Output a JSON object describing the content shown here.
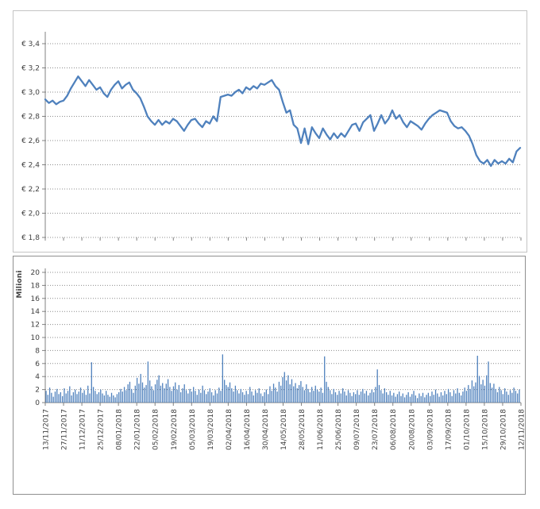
{
  "style": {
    "background": "#ffffff",
    "grid_color": "#8c8c8c",
    "axis_color": "#808080",
    "text_color": "#404040",
    "panel_border_top": "#c4c4c4",
    "panel_border_bottom": "#8f8f8f"
  },
  "chart_data": [
    {
      "type": "line",
      "title": "",
      "ylabel": "",
      "currency_prefix": "€",
      "ylim": [
        1.8,
        3.4
      ],
      "ytick_step": 0.2,
      "ytick_labels": [
        "€ 3,4",
        "€ 3,2",
        "€ 3,0",
        "€ 2,8",
        "€ 2,6",
        "€ 2,4",
        "€ 2,2",
        "€ 2,0",
        "€ 1,8"
      ],
      "x_start": "13/11/2017",
      "x_end": "12/11/2018",
      "grid": "dotted",
      "legend": "none",
      "line_color": "#4f81bd",
      "values": [
        2.94,
        2.91,
        2.93,
        2.9,
        2.92,
        2.93,
        2.97,
        3.03,
        3.08,
        3.13,
        3.09,
        3.05,
        3.1,
        3.06,
        3.02,
        3.04,
        2.99,
        2.96,
        3.02,
        3.06,
        3.09,
        3.03,
        3.06,
        3.08,
        3.02,
        2.99,
        2.95,
        2.88,
        2.8,
        2.76,
        2.73,
        2.77,
        2.73,
        2.76,
        2.74,
        2.78,
        2.76,
        2.72,
        2.68,
        2.73,
        2.77,
        2.78,
        2.74,
        2.71,
        2.76,
        2.74,
        2.8,
        2.76,
        2.96,
        2.97,
        2.98,
        2.97,
        3.0,
        3.02,
        2.99,
        3.04,
        3.02,
        3.05,
        3.03,
        3.07,
        3.06,
        3.08,
        3.1,
        3.05,
        3.02,
        2.92,
        2.83,
        2.85,
        2.73,
        2.7,
        2.58,
        2.7,
        2.57,
        2.71,
        2.66,
        2.62,
        2.7,
        2.65,
        2.61,
        2.66,
        2.62,
        2.66,
        2.63,
        2.68,
        2.73,
        2.74,
        2.68,
        2.75,
        2.78,
        2.81,
        2.68,
        2.74,
        2.81,
        2.74,
        2.78,
        2.85,
        2.78,
        2.81,
        2.75,
        2.71,
        2.76,
        2.74,
        2.72,
        2.69,
        2.74,
        2.78,
        2.81,
        2.83,
        2.85,
        2.84,
        2.83,
        2.76,
        2.72,
        2.7,
        2.71,
        2.68,
        2.64,
        2.57,
        2.48,
        2.43,
        2.41,
        2.44,
        2.39,
        2.44,
        2.41,
        2.43,
        2.41,
        2.45,
        2.42,
        2.51,
        2.54
      ]
    },
    {
      "type": "bar",
      "title": "",
      "ylabel": "Milioni",
      "ylim": [
        0,
        20
      ],
      "ytick_step": 2,
      "ytick_labels": [
        "20",
        "18",
        "16",
        "14",
        "12",
        "10",
        "8",
        "6",
        "4",
        "2",
        "0"
      ],
      "grid": "dotted",
      "legend": "none",
      "bar_color": "#4f81bd",
      "categories": [
        "13/11/2017",
        "27/11/2017",
        "11/12/2017",
        "25/12/2017",
        "08/01/2018",
        "22/01/2018",
        "05/02/2018",
        "19/02/2018",
        "05/03/2018",
        "19/03/2018",
        "02/04/2018",
        "16/04/2018",
        "30/04/2018",
        "14/05/2018",
        "28/05/2018",
        "11/06/2018",
        "25/06/2018",
        "09/07/2018",
        "23/07/2018",
        "06/08/2018",
        "20/08/2018",
        "03/09/2018",
        "17/09/2018",
        "01/10/2018",
        "15/10/2018",
        "29/10/2018",
        "12/11/2018"
      ],
      "values": [
        1.8,
        1.2,
        2.3,
        1.5,
        0.9,
        1.7,
        2.1,
        1.3,
        1.6,
        1.0,
        2.2,
        1.4,
        1.8,
        2.5,
        1.1,
        1.6,
        2.0,
        1.3,
        1.7,
        2.3,
        1.5,
        1.9,
        1.2,
        2.6,
        1.4,
        6.2,
        2.4,
        1.8,
        1.3,
        1.6,
        2.0,
        1.4,
        1.1,
        1.8,
        1.2,
        0.9,
        1.5,
        1.1,
        0.8,
        1.3,
        1.6,
        2.1,
        1.7,
        2.4,
        1.9,
        2.8,
        3.2,
        2.1,
        1.5,
        2.6,
        3.8,
        2.9,
        4.4,
        3.1,
        2.3,
        2.7,
        6.3,
        3.4,
        2.5,
        1.9,
        2.8,
        3.5,
        4.2,
        2.6,
        3.0,
        2.2,
        2.9,
        3.6,
        2.4,
        1.8,
        2.5,
        3.1,
        2.0,
        2.7,
        1.6,
        2.2,
        2.8,
        1.9,
        1.4,
        2.1,
        1.7,
        2.4,
        1.8,
        1.2,
        2.0,
        1.5,
        2.6,
        1.9,
        1.3,
        1.7,
        2.2,
        1.6,
        1.1,
        1.9,
        1.4,
        2.3,
        1.8,
        7.4,
        3.5,
        2.7,
        2.4,
        3.1,
        2.2,
        1.7,
        2.6,
        1.9,
        1.4,
        2.1,
        1.6,
        1.2,
        1.8,
        1.3,
        2.4,
        1.7,
        1.1,
        1.9,
        1.5,
        2.2,
        1.4,
        1.0,
        1.6,
        2.0,
        1.3,
        2.5,
        1.8,
        2.9,
        2.3,
        1.7,
        3.2,
        2.6,
        3.9,
        4.7,
        3.4,
        4.2,
        2.8,
        3.6,
        2.5,
        3.0,
        2.2,
        2.7,
        3.3,
        2.4,
        1.9,
        2.8,
        2.1,
        1.6,
        2.4,
        1.8,
        2.6,
        2.0,
        1.7,
        2.3,
        1.5,
        7.1,
        3.2,
        2.4,
        1.9,
        1.3,
        2.1,
        1.6,
        1.2,
        1.8,
        1.4,
        2.2,
        1.7,
        1.1,
        1.9,
        1.5,
        1.0,
        1.6,
        1.3,
        1.9,
        1.2,
        1.7,
        2.1,
        1.4,
        1.8,
        1.1,
        1.5,
        2.0,
        1.6,
        2.4,
        5.1,
        2.7,
        1.9,
        1.4,
        2.2,
        1.6,
        1.2,
        1.8,
        1.1,
        1.5,
        0.9,
        1.3,
        1.7,
        1.0,
        1.4,
        0.8,
        1.2,
        1.6,
        0.9,
        1.3,
        1.8,
        1.1,
        0.7,
        1.4,
        1.0,
        1.5,
        0.8,
        1.2,
        1.5,
        1.0,
        1.7,
        1.2,
        2.0,
        1.4,
        0.9,
        1.6,
        1.1,
        1.8,
        1.3,
        2.1,
        1.6,
        1.0,
        1.9,
        1.4,
        2.2,
        1.5,
        1.1,
        1.7,
        2.3,
        1.8,
        2.7,
        2.1,
        3.4,
        2.5,
        3.1,
        7.2,
        4.1,
        2.8,
        3.5,
        2.6,
        4.2,
        6.3,
        3.0,
        2.3,
        2.9,
        2.1,
        1.6,
        2.4,
        1.9,
        1.3,
        2.2,
        1.7,
        1.2,
        1.9,
        1.5,
        2.3,
        1.8,
        1.4,
        2.0
      ]
    }
  ]
}
